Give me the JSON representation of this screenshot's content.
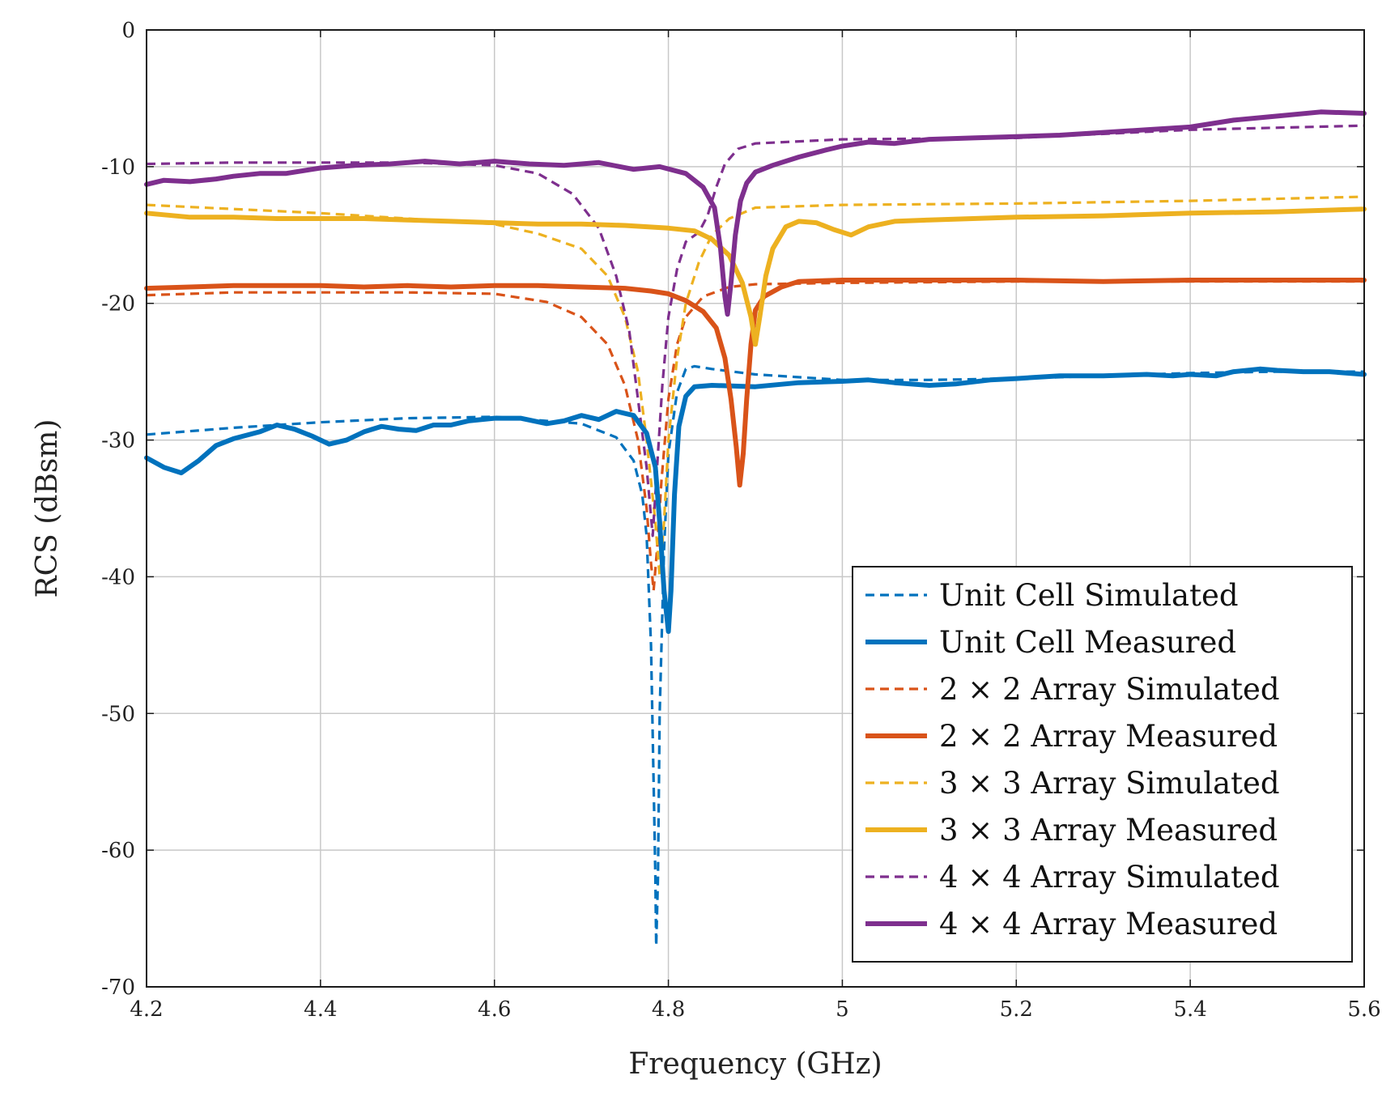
{
  "chart_data": {
    "type": "line",
    "title": "",
    "xlabel": "Frequency (GHz)",
    "ylabel": "RCS (dBsm)",
    "xlim": [
      4.2,
      5.6
    ],
    "ylim": [
      -70,
      0
    ],
    "xticks": [
      4.2,
      4.4,
      4.6,
      4.8,
      5,
      5.2,
      5.4,
      5.6
    ],
    "xtick_labels": [
      "4.2",
      "4.4",
      "4.6",
      "4.8",
      "5",
      "5.2",
      "5.4",
      "5.6"
    ],
    "yticks": [
      0,
      -10,
      -20,
      -30,
      -40,
      -50,
      -60,
      -70
    ],
    "ytick_labels": [
      "0",
      "-10",
      "-20",
      "-30",
      "-40",
      "-50",
      "-60",
      "-70"
    ],
    "grid": true,
    "legend_position": "bottom-right",
    "series": [
      {
        "name": "Unit Cell Simulated",
        "color": "#0072BD",
        "style": "dashed",
        "points": [
          [
            4.2,
            -29.6
          ],
          [
            4.3,
            -29.1
          ],
          [
            4.4,
            -28.7
          ],
          [
            4.5,
            -28.4
          ],
          [
            4.6,
            -28.3
          ],
          [
            4.7,
            -28.8
          ],
          [
            4.74,
            -29.8
          ],
          [
            4.76,
            -31.5
          ],
          [
            4.77,
            -34
          ],
          [
            4.775,
            -37
          ],
          [
            4.78,
            -45
          ],
          [
            4.783,
            -55
          ],
          [
            4.785,
            -62
          ],
          [
            4.786,
            -67
          ],
          [
            4.788,
            -62
          ],
          [
            4.79,
            -50
          ],
          [
            4.795,
            -38
          ],
          [
            4.8,
            -31
          ],
          [
            4.81,
            -26.5
          ],
          [
            4.82,
            -24.8
          ],
          [
            4.83,
            -24.6
          ],
          [
            4.85,
            -24.8
          ],
          [
            4.9,
            -25.2
          ],
          [
            5.0,
            -25.6
          ],
          [
            5.1,
            -25.6
          ],
          [
            5.2,
            -25.5
          ],
          [
            5.3,
            -25.3
          ],
          [
            5.4,
            -25.1
          ],
          [
            5.5,
            -25.0
          ],
          [
            5.6,
            -25.0
          ]
        ]
      },
      {
        "name": "Unit Cell Measured",
        "color": "#0072BD",
        "style": "solid",
        "points": [
          [
            4.2,
            -31.3
          ],
          [
            4.22,
            -32
          ],
          [
            4.24,
            -32.4
          ],
          [
            4.26,
            -31.5
          ],
          [
            4.28,
            -30.4
          ],
          [
            4.3,
            -29.9
          ],
          [
            4.33,
            -29.4
          ],
          [
            4.35,
            -28.9
          ],
          [
            4.37,
            -29.2
          ],
          [
            4.39,
            -29.7
          ],
          [
            4.41,
            -30.3
          ],
          [
            4.43,
            -30.0
          ],
          [
            4.45,
            -29.4
          ],
          [
            4.47,
            -29.0
          ],
          [
            4.49,
            -29.2
          ],
          [
            4.51,
            -29.3
          ],
          [
            4.53,
            -28.9
          ],
          [
            4.55,
            -28.9
          ],
          [
            4.57,
            -28.6
          ],
          [
            4.6,
            -28.4
          ],
          [
            4.63,
            -28.4
          ],
          [
            4.66,
            -28.8
          ],
          [
            4.68,
            -28.6
          ],
          [
            4.7,
            -28.2
          ],
          [
            4.72,
            -28.5
          ],
          [
            4.74,
            -27.9
          ],
          [
            4.76,
            -28.2
          ],
          [
            4.775,
            -29.5
          ],
          [
            4.785,
            -32
          ],
          [
            4.79,
            -36
          ],
          [
            4.795,
            -41
          ],
          [
            4.8,
            -44
          ],
          [
            4.803,
            -41
          ],
          [
            4.807,
            -34
          ],
          [
            4.812,
            -29
          ],
          [
            4.82,
            -26.8
          ],
          [
            4.83,
            -26.1
          ],
          [
            4.85,
            -26.0
          ],
          [
            4.9,
            -26.1
          ],
          [
            4.95,
            -25.8
          ],
          [
            5.0,
            -25.7
          ],
          [
            5.03,
            -25.6
          ],
          [
            5.06,
            -25.8
          ],
          [
            5.1,
            -26.0
          ],
          [
            5.13,
            -25.9
          ],
          [
            5.17,
            -25.6
          ],
          [
            5.2,
            -25.5
          ],
          [
            5.25,
            -25.3
          ],
          [
            5.3,
            -25.3
          ],
          [
            5.35,
            -25.2
          ],
          [
            5.38,
            -25.3
          ],
          [
            5.4,
            -25.2
          ],
          [
            5.43,
            -25.3
          ],
          [
            5.45,
            -25.0
          ],
          [
            5.48,
            -24.8
          ],
          [
            5.5,
            -24.9
          ],
          [
            5.53,
            -25.0
          ],
          [
            5.56,
            -25.0
          ],
          [
            5.6,
            -25.2
          ]
        ]
      },
      {
        "name": "2 × 2 Array Simulated",
        "color": "#D95319",
        "style": "dashed",
        "points": [
          [
            4.2,
            -19.4
          ],
          [
            4.3,
            -19.2
          ],
          [
            4.4,
            -19.2
          ],
          [
            4.5,
            -19.2
          ],
          [
            4.6,
            -19.3
          ],
          [
            4.66,
            -19.9
          ],
          [
            4.7,
            -21
          ],
          [
            4.73,
            -23
          ],
          [
            4.75,
            -26
          ],
          [
            4.765,
            -30
          ],
          [
            4.775,
            -35
          ],
          [
            4.78,
            -39
          ],
          [
            4.783,
            -41
          ],
          [
            4.787,
            -38
          ],
          [
            4.792,
            -33
          ],
          [
            4.8,
            -27
          ],
          [
            4.81,
            -23
          ],
          [
            4.82,
            -21
          ],
          [
            4.84,
            -19.5
          ],
          [
            4.87,
            -18.8
          ],
          [
            4.9,
            -18.6
          ],
          [
            5.0,
            -18.5
          ],
          [
            5.2,
            -18.4
          ],
          [
            5.4,
            -18.4
          ],
          [
            5.6,
            -18.4
          ]
        ]
      },
      {
        "name": "2 × 2 Array Measured",
        "color": "#D95319",
        "style": "solid",
        "points": [
          [
            4.2,
            -18.9
          ],
          [
            4.25,
            -18.8
          ],
          [
            4.3,
            -18.7
          ],
          [
            4.35,
            -18.7
          ],
          [
            4.4,
            -18.7
          ],
          [
            4.45,
            -18.8
          ],
          [
            4.5,
            -18.7
          ],
          [
            4.55,
            -18.8
          ],
          [
            4.6,
            -18.7
          ],
          [
            4.65,
            -18.7
          ],
          [
            4.7,
            -18.8
          ],
          [
            4.75,
            -18.9
          ],
          [
            4.78,
            -19.1
          ],
          [
            4.8,
            -19.3
          ],
          [
            4.82,
            -19.8
          ],
          [
            4.84,
            -20.6
          ],
          [
            4.855,
            -21.8
          ],
          [
            4.865,
            -24
          ],
          [
            4.872,
            -27
          ],
          [
            4.878,
            -30.5
          ],
          [
            4.882,
            -33.3
          ],
          [
            4.886,
            -31
          ],
          [
            4.89,
            -27
          ],
          [
            4.895,
            -23
          ],
          [
            4.9,
            -20.5
          ],
          [
            4.91,
            -19.5
          ],
          [
            4.93,
            -18.8
          ],
          [
            4.95,
            -18.4
          ],
          [
            5.0,
            -18.3
          ],
          [
            5.05,
            -18.3
          ],
          [
            5.1,
            -18.3
          ],
          [
            5.2,
            -18.3
          ],
          [
            5.3,
            -18.4
          ],
          [
            5.4,
            -18.3
          ],
          [
            5.5,
            -18.3
          ],
          [
            5.6,
            -18.3
          ]
        ]
      },
      {
        "name": "3 × 3 Array Simulated",
        "color": "#EDB120",
        "style": "dashed",
        "points": [
          [
            4.2,
            -12.8
          ],
          [
            4.3,
            -13.1
          ],
          [
            4.4,
            -13.4
          ],
          [
            4.5,
            -13.8
          ],
          [
            4.6,
            -14.2
          ],
          [
            4.65,
            -14.9
          ],
          [
            4.7,
            -16
          ],
          [
            4.73,
            -18
          ],
          [
            4.75,
            -21
          ],
          [
            4.765,
            -25
          ],
          [
            4.775,
            -30
          ],
          [
            4.785,
            -36
          ],
          [
            4.79,
            -40
          ],
          [
            4.795,
            -36
          ],
          [
            4.8,
            -30
          ],
          [
            4.81,
            -24
          ],
          [
            4.82,
            -20
          ],
          [
            4.835,
            -17
          ],
          [
            4.85,
            -15
          ],
          [
            4.87,
            -13.8
          ],
          [
            4.9,
            -13.0
          ],
          [
            5.0,
            -12.8
          ],
          [
            5.2,
            -12.7
          ],
          [
            5.4,
            -12.5
          ],
          [
            5.6,
            -12.2
          ]
        ]
      },
      {
        "name": "3 × 3 Array Measured",
        "color": "#EDB120",
        "style": "solid",
        "points": [
          [
            4.2,
            -13.4
          ],
          [
            4.25,
            -13.7
          ],
          [
            4.3,
            -13.7
          ],
          [
            4.35,
            -13.8
          ],
          [
            4.4,
            -13.8
          ],
          [
            4.45,
            -13.8
          ],
          [
            4.5,
            -13.9
          ],
          [
            4.55,
            -14.0
          ],
          [
            4.6,
            -14.1
          ],
          [
            4.65,
            -14.2
          ],
          [
            4.7,
            -14.2
          ],
          [
            4.75,
            -14.3
          ],
          [
            4.8,
            -14.5
          ],
          [
            4.83,
            -14.7
          ],
          [
            4.85,
            -15.3
          ],
          [
            4.87,
            -16.5
          ],
          [
            4.885,
            -18.5
          ],
          [
            4.895,
            -21
          ],
          [
            4.9,
            -23
          ],
          [
            4.905,
            -21
          ],
          [
            4.912,
            -18
          ],
          [
            4.92,
            -16
          ],
          [
            4.935,
            -14.4
          ],
          [
            4.95,
            -14.0
          ],
          [
            4.97,
            -14.1
          ],
          [
            4.99,
            -14.6
          ],
          [
            5.01,
            -15.0
          ],
          [
            5.03,
            -14.4
          ],
          [
            5.06,
            -14.0
          ],
          [
            5.1,
            -13.9
          ],
          [
            5.2,
            -13.7
          ],
          [
            5.3,
            -13.6
          ],
          [
            5.4,
            -13.4
          ],
          [
            5.5,
            -13.3
          ],
          [
            5.6,
            -13.1
          ]
        ]
      },
      {
        "name": "4 × 4 Array Simulated",
        "color": "#7E2F8E",
        "style": "dashed",
        "points": [
          [
            4.2,
            -9.8
          ],
          [
            4.3,
            -9.7
          ],
          [
            4.4,
            -9.7
          ],
          [
            4.5,
            -9.7
          ],
          [
            4.6,
            -9.9
          ],
          [
            4.65,
            -10.5
          ],
          [
            4.69,
            -12
          ],
          [
            4.72,
            -14.5
          ],
          [
            4.74,
            -18
          ],
          [
            4.755,
            -22
          ],
          [
            4.765,
            -27
          ],
          [
            4.775,
            -32
          ],
          [
            4.782,
            -37
          ],
          [
            4.787,
            -32
          ],
          [
            4.793,
            -26
          ],
          [
            4.8,
            -21
          ],
          [
            4.81,
            -17.5
          ],
          [
            4.82,
            -15.5
          ],
          [
            4.835,
            -14.8
          ],
          [
            4.845,
            -13.6
          ],
          [
            4.855,
            -11.5
          ],
          [
            4.865,
            -9.8
          ],
          [
            4.88,
            -8.7
          ],
          [
            4.9,
            -8.3
          ],
          [
            5.0,
            -8.0
          ],
          [
            5.2,
            -7.9
          ],
          [
            5.4,
            -7.3
          ],
          [
            5.6,
            -7.0
          ]
        ]
      },
      {
        "name": "4 × 4 Array Measured",
        "color": "#7E2F8E",
        "style": "solid",
        "points": [
          [
            4.2,
            -11.3
          ],
          [
            4.22,
            -11.0
          ],
          [
            4.25,
            -11.1
          ],
          [
            4.28,
            -10.9
          ],
          [
            4.3,
            -10.7
          ],
          [
            4.33,
            -10.5
          ],
          [
            4.36,
            -10.5
          ],
          [
            4.4,
            -10.1
          ],
          [
            4.44,
            -9.9
          ],
          [
            4.48,
            -9.8
          ],
          [
            4.52,
            -9.6
          ],
          [
            4.56,
            -9.8
          ],
          [
            4.6,
            -9.6
          ],
          [
            4.64,
            -9.8
          ],
          [
            4.68,
            -9.9
          ],
          [
            4.72,
            -9.7
          ],
          [
            4.76,
            -10.2
          ],
          [
            4.79,
            -10.0
          ],
          [
            4.82,
            -10.5
          ],
          [
            4.84,
            -11.5
          ],
          [
            4.853,
            -13
          ],
          [
            4.86,
            -16
          ],
          [
            4.865,
            -19.5
          ],
          [
            4.868,
            -20.8
          ],
          [
            4.872,
            -18.5
          ],
          [
            4.877,
            -15
          ],
          [
            4.883,
            -12.5
          ],
          [
            4.89,
            -11.2
          ],
          [
            4.9,
            -10.4
          ],
          [
            4.92,
            -9.9
          ],
          [
            4.95,
            -9.3
          ],
          [
            4.98,
            -8.8
          ],
          [
            5.0,
            -8.5
          ],
          [
            5.03,
            -8.2
          ],
          [
            5.06,
            -8.3
          ],
          [
            5.1,
            -8.0
          ],
          [
            5.15,
            -7.9
          ],
          [
            5.2,
            -7.8
          ],
          [
            5.25,
            -7.7
          ],
          [
            5.3,
            -7.5
          ],
          [
            5.35,
            -7.3
          ],
          [
            5.4,
            -7.1
          ],
          [
            5.45,
            -6.6
          ],
          [
            5.5,
            -6.3
          ],
          [
            5.55,
            -6.0
          ],
          [
            5.6,
            -6.1
          ]
        ]
      }
    ]
  }
}
